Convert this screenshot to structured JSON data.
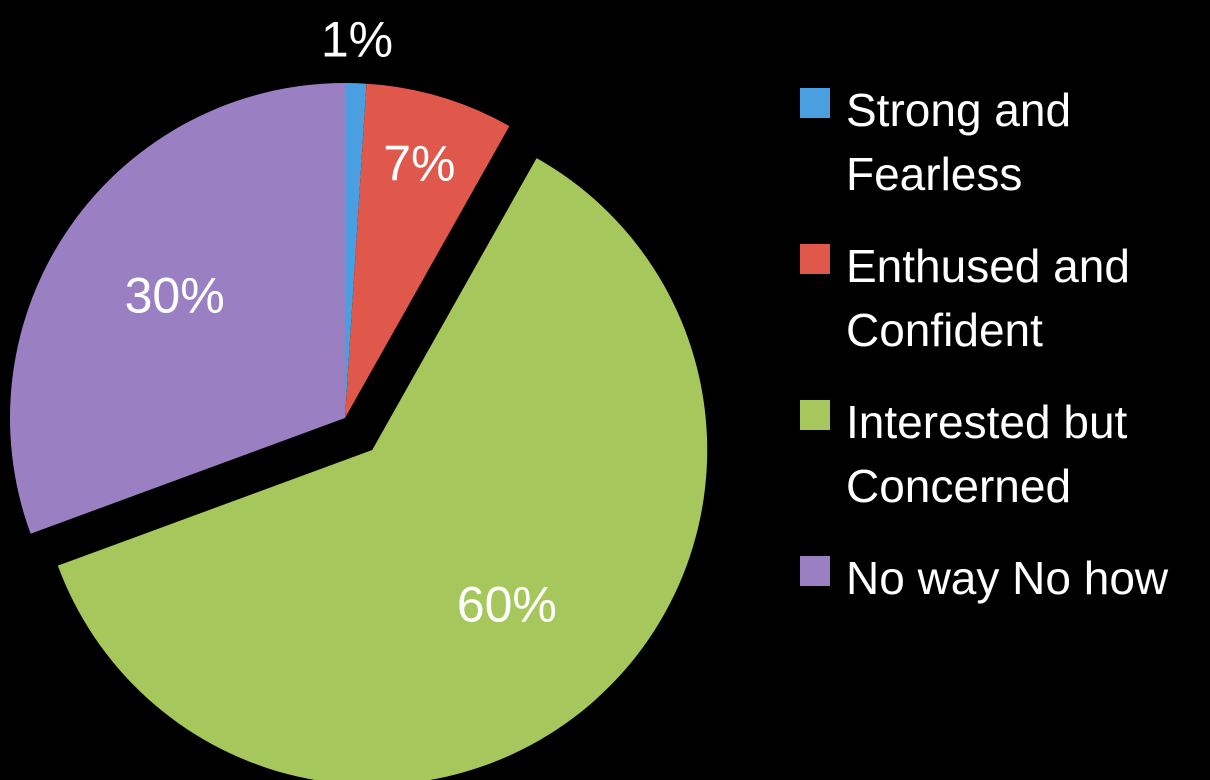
{
  "chart_data": {
    "type": "pie",
    "categories": [
      "Strong and Fearless",
      "Enthused and Confident",
      "Interested but Concerned",
      "No way No how"
    ],
    "values": [
      1,
      7,
      60,
      30
    ],
    "value_labels": [
      "1%",
      "7%",
      "60%",
      "30%"
    ],
    "colors": [
      "#4a9fe0",
      "#e0574b",
      "#a6c75b",
      "#9a80c2"
    ],
    "explode": [
      false,
      false,
      true,
      false
    ],
    "legend": "right"
  }
}
